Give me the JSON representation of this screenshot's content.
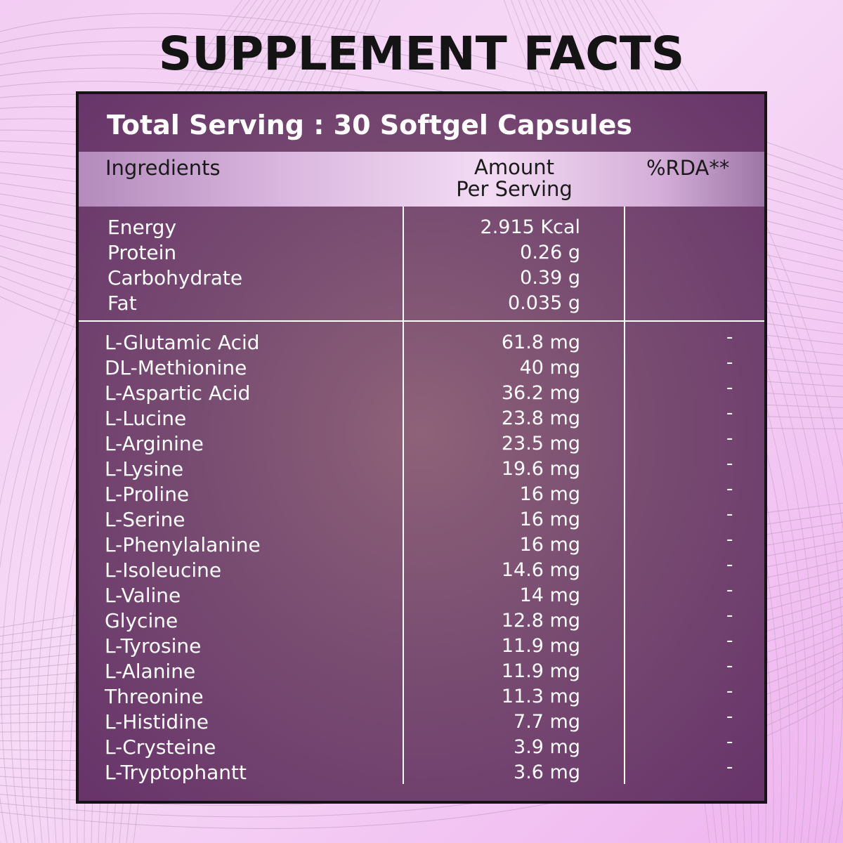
{
  "title": "SUPPLEMENT FACTS",
  "total_serving": "Total Serving : 30 Softgel Capsules",
  "columns": {
    "ingredients": "Ingredients",
    "amount_line1": "Amount",
    "amount_line2": "Per Serving",
    "rda": "%RDA**"
  },
  "colors": {
    "panel": "#7a4f72",
    "background": "#f3cdf3",
    "text": "#ffffff",
    "title": "#141414"
  },
  "nutrition": [
    {
      "name": "Energy",
      "amount": "2.915 Kcal"
    },
    {
      "name": "Protein",
      "amount": "0.26 g"
    },
    {
      "name": "Carbohydrate",
      "amount": "0.39 g"
    },
    {
      "name": "Fat",
      "amount": "0.035 g"
    }
  ],
  "amino_acids": [
    {
      "name": "L-Glutamic Acid",
      "amount": "61.8 mg",
      "rda": "-"
    },
    {
      "name": "DL-Methionine",
      "amount": "40 mg",
      "rda": "-"
    },
    {
      "name": "L-Aspartic Acid",
      "amount": "36.2 mg",
      "rda": "-"
    },
    {
      "name": "L-Lucine",
      "amount": "23.8 mg",
      "rda": "-"
    },
    {
      "name": "L-Arginine",
      "amount": "23.5 mg",
      "rda": "-"
    },
    {
      "name": "L-Lysine",
      "amount": "19.6 mg",
      "rda": "-"
    },
    {
      "name": "L-Proline",
      "amount": "16 mg",
      "rda": "-"
    },
    {
      "name": "L-Serine",
      "amount": "16 mg",
      "rda": "-"
    },
    {
      "name": "L-Phenylalanine",
      "amount": "16 mg",
      "rda": "-"
    },
    {
      "name": "L-Isoleucine",
      "amount": "14.6 mg",
      "rda": "-"
    },
    {
      "name": "L-Valine",
      "amount": "14 mg",
      "rda": "-"
    },
    {
      "name": "Glycine",
      "amount": "12.8 mg",
      "rda": "-"
    },
    {
      "name": "L-Tyrosine",
      "amount": "11.9 mg",
      "rda": "-"
    },
    {
      "name": "L-Alanine",
      "amount": "11.9 mg",
      "rda": "-"
    },
    {
      "name": "Threonine",
      "amount": "11.3 mg",
      "rda": "-"
    },
    {
      "name": "L-Histidine",
      "amount": "7.7 mg",
      "rda": "-"
    },
    {
      "name": "L-Crysteine",
      "amount": "3.9 mg",
      "rda": "-"
    },
    {
      "name": "L-Tryptophantt",
      "amount": "3.6 mg",
      "rda": "-"
    }
  ]
}
